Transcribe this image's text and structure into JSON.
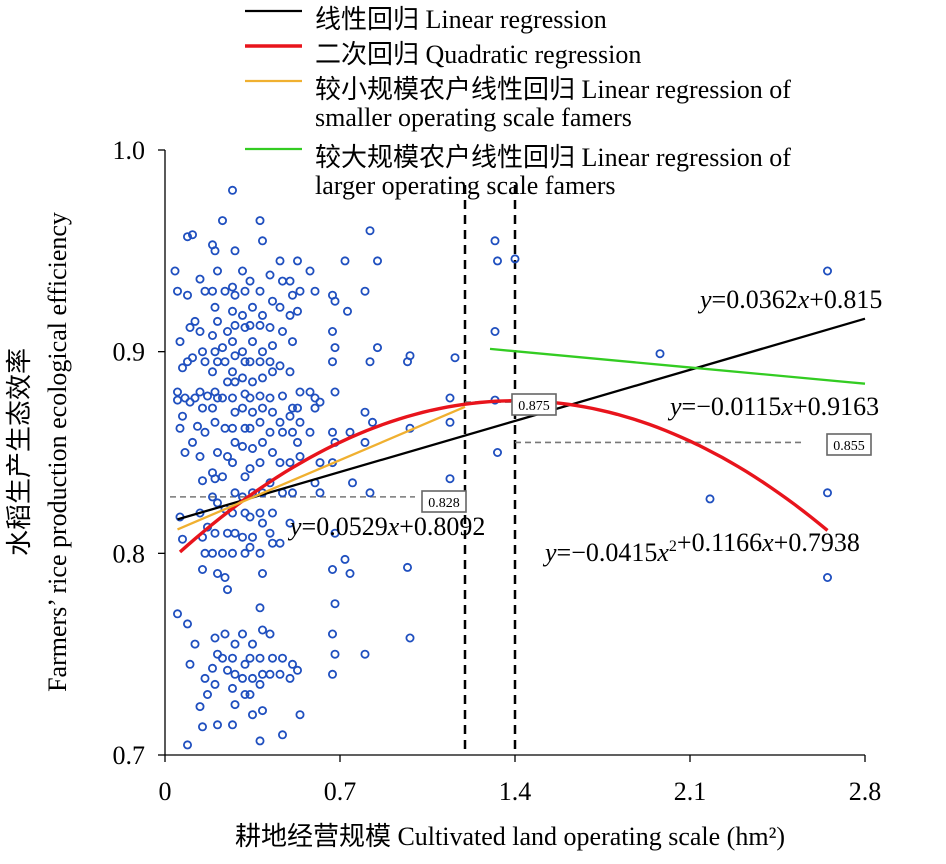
{
  "chart_data": {
    "type": "scatter",
    "xlabel": "耕地经营规模 Cultivated land operating scale (hm²)",
    "ylabel_cn": "水稻生产生态效率",
    "ylabel_en": "Farmers’ rice production ecological efficiency",
    "xlim": [
      0,
      2.8
    ],
    "ylim": [
      0.7,
      1.0
    ],
    "xticks": [
      "0",
      "0.7",
      "1.4",
      "2.1",
      "2.8"
    ],
    "yticks": [
      "0.7",
      "0.8",
      "0.9",
      "1.0"
    ],
    "grid": false,
    "legend_position": "top",
    "legend": [
      {
        "label": "线性回归 Linear regression",
        "color": "#000000"
      },
      {
        "label": "二次回归 Quadratic regression",
        "color": "#e8141c"
      },
      {
        "label": "较小规模农户线性回归 Linear regression of",
        "label2": "smaller operating scale famers",
        "color": "#f0b030"
      },
      {
        "label": "较大规模农户线性回归 Linear regression of",
        "label2": "larger operating scale famers",
        "color": "#33cc22"
      }
    ],
    "series": [
      {
        "name": "线性回归 Linear regression",
        "kind": "linear",
        "slope": 0.0362,
        "intercept": 0.815,
        "x_range": [
          0.05,
          2.8
        ],
        "color": "#000000",
        "equation": "y=0.0362x+0.815"
      },
      {
        "name": "二次回归 Quadratic regression",
        "kind": "quadratic",
        "a": -0.0415,
        "b": 0.1166,
        "c": 0.7938,
        "x_range": [
          0.06,
          2.65
        ],
        "color": "#e8141c",
        "equation": "y=−0.0415x²+0.1166x+0.7938"
      },
      {
        "name": "较小规模农户线性回归",
        "kind": "linear",
        "slope": 0.0529,
        "intercept": 0.8092,
        "x_range": [
          0.05,
          1.2
        ],
        "color": "#f0b030",
        "equation": "y=0.0529x+0.8092"
      },
      {
        "name": "较大规模农户线性回归",
        "kind": "linear",
        "slope": -0.0115,
        "intercept": 0.9163,
        "x_range": [
          1.3,
          2.8
        ],
        "color": "#33cc22",
        "equation": "y=−0.0115x+0.9163"
      }
    ],
    "thresholds": [
      1.2,
      1.4
    ],
    "annotations": [
      {
        "label": "0.828",
        "y": 0.828,
        "x_from": 0.02,
        "x_to": 1.0
      },
      {
        "label": "0.875",
        "y": 0.875,
        "x_from": 1.2,
        "x_to": 1.4
      },
      {
        "label": "0.855",
        "y": 0.855,
        "x_from": 1.4,
        "x_to": 2.55
      }
    ],
    "point_color": "#1f4fbf",
    "points": [
      [
        0.04,
        0.94
      ],
      [
        0.05,
        0.93
      ],
      [
        0.06,
        0.905
      ],
      [
        0.07,
        0.892
      ],
      [
        0.05,
        0.88
      ],
      [
        0.08,
        0.877
      ],
      [
        0.05,
        0.876
      ],
      [
        0.07,
        0.868
      ],
      [
        0.06,
        0.862
      ],
      [
        0.08,
        0.85
      ],
      [
        0.06,
        0.818
      ],
      [
        0.07,
        0.807
      ],
      [
        0.05,
        0.77
      ],
      [
        0.09,
        0.957
      ],
      [
        0.11,
        0.958
      ],
      [
        0.09,
        0.928
      ],
      [
        0.12,
        0.915
      ],
      [
        0.1,
        0.912
      ],
      [
        0.11,
        0.897
      ],
      [
        0.09,
        0.895
      ],
      [
        0.12,
        0.877
      ],
      [
        0.1,
        0.875
      ],
      [
        0.13,
        0.863
      ],
      [
        0.11,
        0.855
      ],
      [
        0.09,
        0.765
      ],
      [
        0.12,
        0.755
      ],
      [
        0.1,
        0.745
      ],
      [
        0.09,
        0.705
      ],
      [
        0.14,
        0.936
      ],
      [
        0.16,
        0.93
      ],
      [
        0.14,
        0.91
      ],
      [
        0.15,
        0.9
      ],
      [
        0.16,
        0.895
      ],
      [
        0.14,
        0.88
      ],
      [
        0.17,
        0.878
      ],
      [
        0.15,
        0.872
      ],
      [
        0.16,
        0.86
      ],
      [
        0.14,
        0.848
      ],
      [
        0.15,
        0.836
      ],
      [
        0.14,
        0.82
      ],
      [
        0.17,
        0.813
      ],
      [
        0.15,
        0.808
      ],
      [
        0.16,
        0.8
      ],
      [
        0.15,
        0.792
      ],
      [
        0.16,
        0.738
      ],
      [
        0.17,
        0.73
      ],
      [
        0.14,
        0.724
      ],
      [
        0.15,
        0.714
      ],
      [
        0.19,
        0.953
      ],
      [
        0.2,
        0.95
      ],
      [
        0.21,
        0.94
      ],
      [
        0.19,
        0.93
      ],
      [
        0.2,
        0.922
      ],
      [
        0.21,
        0.915
      ],
      [
        0.19,
        0.908
      ],
      [
        0.2,
        0.9
      ],
      [
        0.21,
        0.895
      ],
      [
        0.19,
        0.89
      ],
      [
        0.2,
        0.88
      ],
      [
        0.21,
        0.877
      ],
      [
        0.19,
        0.872
      ],
      [
        0.2,
        0.865
      ],
      [
        0.21,
        0.85
      ],
      [
        0.19,
        0.84
      ],
      [
        0.2,
        0.837
      ],
      [
        0.19,
        0.828
      ],
      [
        0.21,
        0.825
      ],
      [
        0.2,
        0.81
      ],
      [
        0.19,
        0.8
      ],
      [
        0.21,
        0.79
      ],
      [
        0.2,
        0.758
      ],
      [
        0.21,
        0.75
      ],
      [
        0.19,
        0.743
      ],
      [
        0.2,
        0.735
      ],
      [
        0.21,
        0.715
      ],
      [
        0.23,
        0.965
      ],
      [
        0.24,
        0.93
      ],
      [
        0.25,
        0.91
      ],
      [
        0.23,
        0.902
      ],
      [
        0.24,
        0.895
      ],
      [
        0.25,
        0.885
      ],
      [
        0.23,
        0.877
      ],
      [
        0.24,
        0.862
      ],
      [
        0.25,
        0.848
      ],
      [
        0.23,
        0.838
      ],
      [
        0.24,
        0.822
      ],
      [
        0.25,
        0.81
      ],
      [
        0.23,
        0.8
      ],
      [
        0.24,
        0.788
      ],
      [
        0.25,
        0.782
      ],
      [
        0.24,
        0.76
      ],
      [
        0.23,
        0.748
      ],
      [
        0.25,
        0.742
      ],
      [
        0.27,
        0.98
      ],
      [
        0.28,
        0.95
      ],
      [
        0.27,
        0.932
      ],
      [
        0.28,
        0.928
      ],
      [
        0.27,
        0.92
      ],
      [
        0.28,
        0.913
      ],
      [
        0.27,
        0.905
      ],
      [
        0.28,
        0.898
      ],
      [
        0.27,
        0.89
      ],
      [
        0.28,
        0.885
      ],
      [
        0.27,
        0.877
      ],
      [
        0.28,
        0.87
      ],
      [
        0.27,
        0.862
      ],
      [
        0.28,
        0.855
      ],
      [
        0.27,
        0.845
      ],
      [
        0.28,
        0.83
      ],
      [
        0.27,
        0.82
      ],
      [
        0.28,
        0.81
      ],
      [
        0.27,
        0.8
      ],
      [
        0.28,
        0.755
      ],
      [
        0.27,
        0.748
      ],
      [
        0.28,
        0.74
      ],
      [
        0.27,
        0.733
      ],
      [
        0.28,
        0.725
      ],
      [
        0.27,
        0.715
      ],
      [
        0.31,
        0.94
      ],
      [
        0.32,
        0.93
      ],
      [
        0.31,
        0.918
      ],
      [
        0.32,
        0.912
      ],
      [
        0.31,
        0.9
      ],
      [
        0.32,
        0.895
      ],
      [
        0.31,
        0.887
      ],
      [
        0.32,
        0.879
      ],
      [
        0.31,
        0.872
      ],
      [
        0.32,
        0.862
      ],
      [
        0.31,
        0.853
      ],
      [
        0.32,
        0.838
      ],
      [
        0.31,
        0.828
      ],
      [
        0.32,
        0.82
      ],
      [
        0.31,
        0.808
      ],
      [
        0.32,
        0.8
      ],
      [
        0.31,
        0.76
      ],
      [
        0.32,
        0.745
      ],
      [
        0.31,
        0.738
      ],
      [
        0.32,
        0.73
      ],
      [
        0.34,
        0.935
      ],
      [
        0.35,
        0.922
      ],
      [
        0.34,
        0.913
      ],
      [
        0.35,
        0.905
      ],
      [
        0.34,
        0.895
      ],
      [
        0.35,
        0.885
      ],
      [
        0.34,
        0.877
      ],
      [
        0.35,
        0.87
      ],
      [
        0.34,
        0.862
      ],
      [
        0.35,
        0.852
      ],
      [
        0.34,
        0.842
      ],
      [
        0.35,
        0.83
      ],
      [
        0.34,
        0.818
      ],
      [
        0.35,
        0.808
      ],
      [
        0.34,
        0.803
      ],
      [
        0.35,
        0.755
      ],
      [
        0.34,
        0.748
      ],
      [
        0.35,
        0.738
      ],
      [
        0.34,
        0.73
      ],
      [
        0.35,
        0.72
      ],
      [
        0.38,
        0.965
      ],
      [
        0.39,
        0.955
      ],
      [
        0.38,
        0.93
      ],
      [
        0.39,
        0.918
      ],
      [
        0.38,
        0.913
      ],
      [
        0.39,
        0.9
      ],
      [
        0.38,
        0.895
      ],
      [
        0.39,
        0.887
      ],
      [
        0.38,
        0.878
      ],
      [
        0.39,
        0.872
      ],
      [
        0.38,
        0.865
      ],
      [
        0.39,
        0.855
      ],
      [
        0.38,
        0.845
      ],
      [
        0.39,
        0.83
      ],
      [
        0.38,
        0.82
      ],
      [
        0.39,
        0.815
      ],
      [
        0.38,
        0.8
      ],
      [
        0.39,
        0.79
      ],
      [
        0.38,
        0.773
      ],
      [
        0.39,
        0.762
      ],
      [
        0.38,
        0.748
      ],
      [
        0.39,
        0.74
      ],
      [
        0.38,
        0.735
      ],
      [
        0.39,
        0.722
      ],
      [
        0.38,
        0.707
      ],
      [
        0.42,
        0.938
      ],
      [
        0.43,
        0.925
      ],
      [
        0.42,
        0.912
      ],
      [
        0.43,
        0.903
      ],
      [
        0.42,
        0.895
      ],
      [
        0.43,
        0.89
      ],
      [
        0.42,
        0.877
      ],
      [
        0.43,
        0.87
      ],
      [
        0.42,
        0.86
      ],
      [
        0.43,
        0.85
      ],
      [
        0.42,
        0.835
      ],
      [
        0.43,
        0.82
      ],
      [
        0.42,
        0.81
      ],
      [
        0.43,
        0.805
      ],
      [
        0.42,
        0.76
      ],
      [
        0.43,
        0.748
      ],
      [
        0.42,
        0.74
      ],
      [
        0.46,
        0.945
      ],
      [
        0.47,
        0.935
      ],
      [
        0.46,
        0.922
      ],
      [
        0.47,
        0.91
      ],
      [
        0.46,
        0.893
      ],
      [
        0.47,
        0.878
      ],
      [
        0.46,
        0.865
      ],
      [
        0.47,
        0.86
      ],
      [
        0.46,
        0.845
      ],
      [
        0.47,
        0.83
      ],
      [
        0.46,
        0.805
      ],
      [
        0.47,
        0.748
      ],
      [
        0.46,
        0.74
      ],
      [
        0.47,
        0.71
      ],
      [
        0.5,
        0.935
      ],
      [
        0.51,
        0.928
      ],
      [
        0.5,
        0.918
      ],
      [
        0.51,
        0.905
      ],
      [
        0.5,
        0.89
      ],
      [
        0.51,
        0.872
      ],
      [
        0.5,
        0.868
      ],
      [
        0.51,
        0.86
      ],
      [
        0.5,
        0.845
      ],
      [
        0.51,
        0.83
      ],
      [
        0.5,
        0.815
      ],
      [
        0.51,
        0.745
      ],
      [
        0.5,
        0.738
      ],
      [
        0.53,
        0.945
      ],
      [
        0.54,
        0.93
      ],
      [
        0.53,
        0.92
      ],
      [
        0.54,
        0.88
      ],
      [
        0.53,
        0.872
      ],
      [
        0.54,
        0.865
      ],
      [
        0.53,
        0.855
      ],
      [
        0.54,
        0.848
      ],
      [
        0.53,
        0.742
      ],
      [
        0.54,
        0.72
      ],
      [
        0.58,
        0.94
      ],
      [
        0.6,
        0.93
      ],
      [
        0.58,
        0.88
      ],
      [
        0.6,
        0.877
      ],
      [
        0.62,
        0.875
      ],
      [
        0.6,
        0.872
      ],
      [
        0.58,
        0.86
      ],
      [
        0.62,
        0.845
      ],
      [
        0.6,
        0.835
      ],
      [
        0.62,
        0.83
      ],
      [
        0.67,
        0.928
      ],
      [
        0.68,
        0.925
      ],
      [
        0.67,
        0.91
      ],
      [
        0.68,
        0.902
      ],
      [
        0.67,
        0.895
      ],
      [
        0.68,
        0.88
      ],
      [
        0.67,
        0.86
      ],
      [
        0.68,
        0.855
      ],
      [
        0.67,
        0.845
      ],
      [
        0.68,
        0.81
      ],
      [
        0.67,
        0.792
      ],
      [
        0.68,
        0.775
      ],
      [
        0.67,
        0.76
      ],
      [
        0.68,
        0.75
      ],
      [
        0.67,
        0.74
      ],
      [
        0.72,
        0.945
      ],
      [
        0.73,
        0.92
      ],
      [
        0.74,
        0.86
      ],
      [
        0.75,
        0.835
      ],
      [
        0.72,
        0.797
      ],
      [
        0.74,
        0.79
      ],
      [
        0.8,
        0.93
      ],
      [
        0.82,
        0.96
      ],
      [
        0.85,
        0.945
      ],
      [
        0.82,
        0.895
      ],
      [
        0.85,
        0.902
      ],
      [
        0.8,
        0.87
      ],
      [
        0.83,
        0.865
      ],
      [
        0.8,
        0.855
      ],
      [
        0.82,
        0.83
      ],
      [
        0.8,
        0.75
      ],
      [
        0.98,
        0.898
      ],
      [
        0.97,
        0.895
      ],
      [
        0.98,
        0.862
      ],
      [
        0.97,
        0.793
      ],
      [
        0.98,
        0.758
      ],
      [
        1.16,
        0.897
      ],
      [
        1.14,
        0.877
      ],
      [
        1.14,
        0.865
      ],
      [
        1.14,
        0.837
      ],
      [
        1.32,
        0.955
      ],
      [
        1.33,
        0.945
      ],
      [
        1.32,
        0.91
      ],
      [
        1.32,
        0.876
      ],
      [
        1.33,
        0.85
      ],
      [
        1.4,
        0.946
      ],
      [
        1.98,
        0.899
      ],
      [
        2.18,
        0.827
      ],
      [
        2.65,
        0.94
      ],
      [
        2.65,
        0.83
      ],
      [
        2.65,
        0.788
      ]
    ]
  }
}
